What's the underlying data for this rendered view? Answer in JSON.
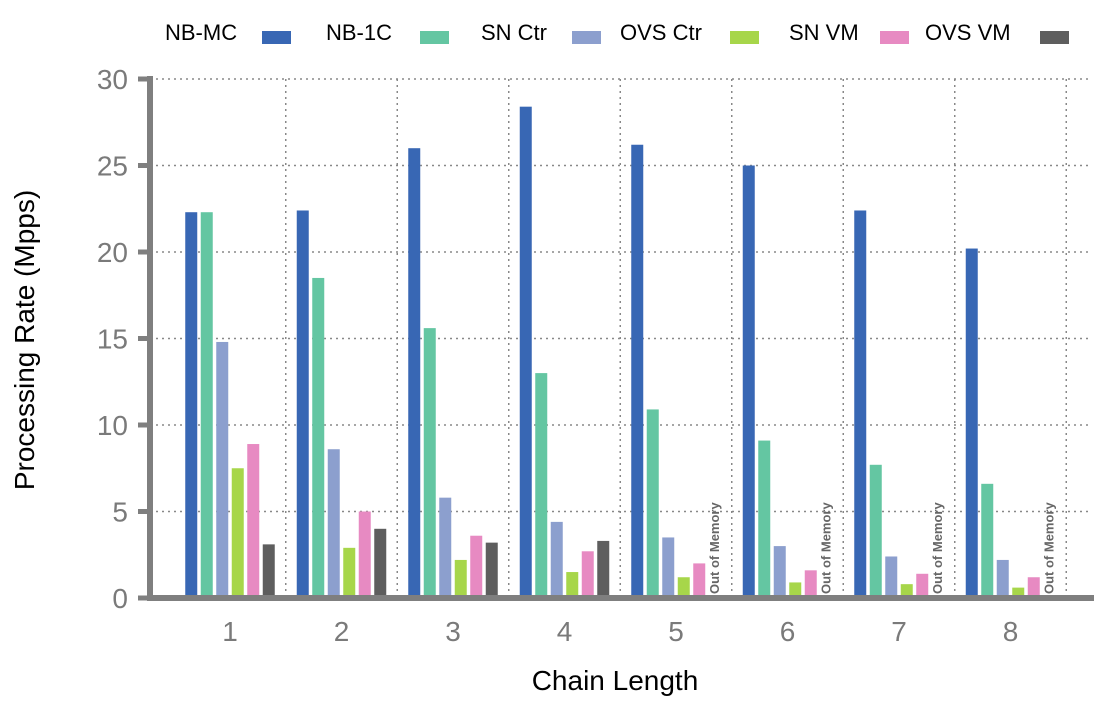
{
  "chart_data": {
    "type": "bar",
    "xlabel": "Chain Length",
    "ylabel": "Processing Rate (Mpps)",
    "ylim": [
      0,
      30
    ],
    "yticks": [
      0,
      5,
      10,
      15,
      20,
      25,
      30
    ],
    "categories": [
      "1",
      "2",
      "3",
      "4",
      "5",
      "6",
      "7",
      "8"
    ],
    "grid": true,
    "legend_position": "top",
    "oom_label": "Out of Memory",
    "series": [
      {
        "name": "NB-MC",
        "color": "#3867b4",
        "values": [
          22.3,
          22.4,
          26.0,
          28.4,
          26.2,
          25.0,
          22.4,
          20.2
        ]
      },
      {
        "name": "NB-1C",
        "color": "#64c6a2",
        "values": [
          22.3,
          18.5,
          15.6,
          13.0,
          10.9,
          9.1,
          7.7,
          6.6
        ]
      },
      {
        "name": "SN Ctr",
        "color": "#8c9fce",
        "values": [
          14.8,
          8.6,
          5.8,
          4.4,
          3.5,
          3.0,
          2.4,
          2.2
        ]
      },
      {
        "name": "OVS Ctr",
        "color": "#a7d64a",
        "values": [
          7.5,
          2.9,
          2.2,
          1.5,
          1.2,
          0.9,
          0.8,
          0.6
        ]
      },
      {
        "name": "SN VM",
        "color": "#e78ac2",
        "values": [
          8.9,
          5.0,
          3.6,
          2.7,
          2.0,
          1.6,
          1.4,
          1.2
        ]
      },
      {
        "name": "OVS VM",
        "color": "#5e5e5e",
        "values": [
          3.1,
          4.0,
          3.2,
          3.3,
          null,
          null,
          null,
          null
        ]
      }
    ]
  }
}
